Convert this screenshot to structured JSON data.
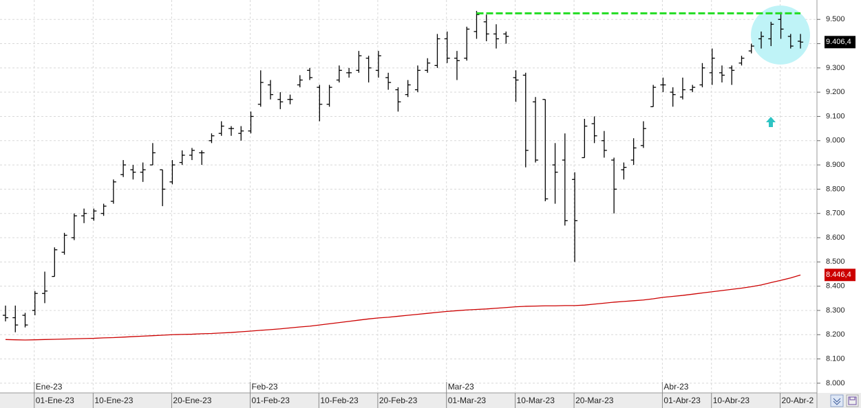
{
  "chart_data": {
    "type": "ohlc",
    "ylim": [
      7960,
      9580
    ],
    "yticks": [
      {
        "value": 8000,
        "label": "8.000"
      },
      {
        "value": 8100,
        "label": "8.100"
      },
      {
        "value": 8200,
        "label": "8.200"
      },
      {
        "value": 8300,
        "label": "8.300"
      },
      {
        "value": 8400,
        "label": "8.400"
      },
      {
        "value": 8500,
        "label": "8.500"
      },
      {
        "value": 8600,
        "label": "8.600"
      },
      {
        "value": 8700,
        "label": "8.700"
      },
      {
        "value": 8800,
        "label": "8.800"
      },
      {
        "value": 8900,
        "label": "8.900"
      },
      {
        "value": 9000,
        "label": "9.000"
      },
      {
        "value": 9100,
        "label": "9.100"
      },
      {
        "value": 9200,
        "label": "9.200"
      },
      {
        "value": 9300,
        "label": "9.300"
      },
      {
        "value": 9400,
        "label": "9.400"
      },
      {
        "value": 9500,
        "label": "9.500"
      }
    ],
    "grid": true,
    "categories": [
      null,
      null,
      null,
      "01-Ene-23",
      null,
      null,
      null,
      null,
      null,
      "10-Ene-23",
      null,
      null,
      null,
      null,
      null,
      null,
      null,
      "20-Ene-23",
      null,
      null,
      null,
      null,
      null,
      null,
      null,
      "01-Feb-23",
      null,
      null,
      null,
      null,
      null,
      null,
      "10-Feb-23",
      null,
      null,
      null,
      null,
      null,
      "20-Feb-23",
      null,
      null,
      null,
      null,
      null,
      null,
      "01-Mar-23",
      null,
      null,
      null,
      null,
      null,
      null,
      "10-Mar-23",
      null,
      null,
      null,
      null,
      null,
      "20-Mar-23",
      null,
      null,
      null,
      null,
      null,
      null,
      null,
      null,
      "01-Abr-23",
      null,
      null,
      null,
      null,
      "10-Abr-23",
      null,
      null,
      null,
      null,
      null,
      null,
      "20-Abr-2",
      null,
      null
    ],
    "month_categories": [
      null,
      null,
      null,
      "Ene-23",
      null,
      null,
      null,
      null,
      null,
      null,
      null,
      null,
      null,
      null,
      null,
      null,
      null,
      null,
      null,
      null,
      null,
      null,
      null,
      null,
      null,
      "Feb-23",
      null,
      null,
      null,
      null,
      null,
      null,
      null,
      null,
      null,
      null,
      null,
      null,
      null,
      null,
      null,
      null,
      null,
      null,
      null,
      "Mar-23",
      null,
      null,
      null,
      null,
      null,
      null,
      null,
      null,
      null,
      null,
      null,
      null,
      null,
      null,
      null,
      null,
      null,
      null,
      null,
      null,
      null,
      "Abr-23",
      null,
      null,
      null,
      null,
      null,
      null,
      null,
      null,
      null,
      null,
      null,
      null,
      null,
      null
    ],
    "color": "#000000",
    "open": [
      8280,
      8270,
      8280,
      8300,
      8370,
      8440,
      8540,
      8600,
      8690,
      8680,
      8700,
      8750,
      8860,
      8880,
      8870,
      8900,
      8880,
      8830,
      8910,
      8940,
      8950,
      9000,
      9030,
      9050,
      9030,
      9040,
      9150,
      9230,
      9170,
      9170,
      9230,
      9290,
      9220,
      9150,
      9250,
      9280,
      9290,
      9340,
      9290,
      9260,
      9210,
      9190,
      9210,
      9290,
      9310,
      9420,
      9340,
      9340,
      9450,
      9490,
      9440,
      9440,
      9260,
      9270,
      9160,
      9170,
      8900,
      8920,
      8840,
      8930,
      9070,
      9000,
      8920,
      8880,
      8920,
      8980,
      9140,
      9230,
      9200,
      9180,
      9210,
      9230,
      9280,
      9280,
      9300,
      9320,
      9370,
      9420,
      9420,
      9500,
      9430,
      9410
    ],
    "high": [
      8320,
      8320,
      8290,
      8380,
      8460,
      8560,
      8620,
      8700,
      8720,
      8720,
      8740,
      8840,
      8920,
      8900,
      8910,
      8990,
      8880,
      8920,
      8960,
      8970,
      8960,
      9030,
      9080,
      9060,
      9060,
      9120,
      9290,
      9250,
      9200,
      9190,
      9270,
      9300,
      9230,
      9230,
      9310,
      9300,
      9370,
      9350,
      9370,
      9280,
      9220,
      9250,
      9310,
      9340,
      9440,
      9450,
      9370,
      9470,
      9535,
      9520,
      9480,
      9450,
      9290,
      9280,
      9180,
      9170,
      8990,
      9030,
      8870,
      9090,
      9100,
      9040,
      8930,
      8910,
      9010,
      9080,
      9230,
      9260,
      9220,
      9260,
      9230,
      9320,
      9380,
      9310,
      9310,
      9350,
      9400,
      9450,
      9490,
      9530,
      9440,
      9440
    ],
    "low": [
      8255,
      8210,
      8230,
      8280,
      8330,
      8440,
      8530,
      8590,
      8660,
      8670,
      8690,
      8740,
      8850,
      8840,
      8830,
      8900,
      8730,
      8820,
      8900,
      8920,
      8900,
      8990,
      9020,
      9020,
      9000,
      9030,
      9140,
      9170,
      9130,
      9150,
      9220,
      9250,
      9080,
      9140,
      9240,
      9260,
      9280,
      9240,
      9260,
      9210,
      9120,
      9180,
      9200,
      9280,
      9300,
      9320,
      9250,
      9330,
      9420,
      9410,
      9380,
      9400,
      9160,
      8890,
      8910,
      8750,
      8740,
      8650,
      8500,
      8930,
      8990,
      8930,
      8700,
      8840,
      8900,
      8970,
      9140,
      9200,
      9140,
      9170,
      9200,
      9220,
      9230,
      9240,
      9230,
      9310,
      9360,
      9380,
      9390,
      9420,
      9380,
      9380
    ],
    "close": [
      8270,
      8240,
      8240,
      8370,
      8380,
      8550,
      8610,
      8690,
      8700,
      8710,
      8730,
      8830,
      8900,
      8870,
      8880,
      8950,
      8800,
      8900,
      8940,
      8960,
      8950,
      9020,
      9060,
      9050,
      9040,
      9100,
      9240,
      9190,
      9160,
      9170,
      9250,
      9260,
      9150,
      9220,
      9290,
      9280,
      9350,
      9300,
      9350,
      9240,
      9160,
      9230,
      9290,
      9320,
      9420,
      9340,
      9330,
      9460,
      9520,
      9440,
      9420,
      9430,
      9250,
      8960,
      8920,
      8760,
      8870,
      8670,
      8670,
      9060,
      9020,
      8960,
      8800,
      8890,
      8970,
      9050,
      9220,
      9230,
      9190,
      9210,
      9220,
      9300,
      9340,
      9270,
      9290,
      9340,
      9390,
      9430,
      9480,
      9460,
      9390,
      9406.4
    ],
    "moving_average": {
      "color": "#cc0000",
      "values": [
        8180,
        8179,
        8178,
        8179,
        8180,
        8181,
        8182,
        8183,
        8184,
        8185,
        8187,
        8188,
        8190,
        8192,
        8194,
        8196,
        8198,
        8200,
        8201,
        8202,
        8204,
        8205,
        8207,
        8209,
        8212,
        8215,
        8218,
        8221,
        8224,
        8228,
        8232,
        8235,
        8240,
        8245,
        8250,
        8255,
        8260,
        8265,
        8269,
        8272,
        8276,
        8280,
        8284,
        8288,
        8292,
        8296,
        8299,
        8302,
        8304,
        8306,
        8309,
        8312,
        8315,
        8317,
        8318,
        8319,
        8319,
        8320,
        8320,
        8322,
        8326,
        8330,
        8334,
        8337,
        8340,
        8343,
        8348,
        8354,
        8358,
        8362,
        8367,
        8372,
        8377,
        8382,
        8387,
        8392,
        8398,
        8405,
        8415,
        8424,
        8434,
        8446
      ]
    },
    "last_price": {
      "value": 9406.4,
      "label": "9.406,4"
    },
    "ma_last": {
      "value": 8446.4,
      "label": "8.446,4"
    },
    "resistance": {
      "value": 9525,
      "color": "#22dd22"
    }
  }
}
